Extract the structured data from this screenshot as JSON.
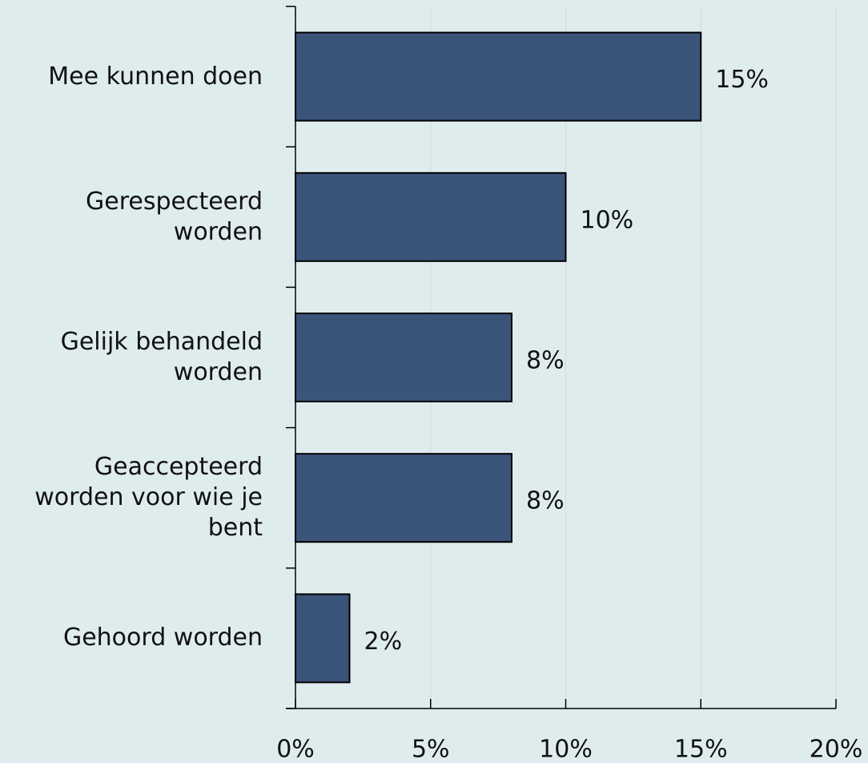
{
  "chart_data": {
    "type": "bar",
    "orientation": "horizontal",
    "categories": [
      "Mee kunnen doen",
      "Gerespecteerd worden",
      "Gelijk behandeld worden",
      "Geaccepteerd worden voor wie je bent",
      "Gehoord worden"
    ],
    "values": [
      15,
      10,
      8,
      8,
      2
    ],
    "value_labels": [
      "15%",
      "10%",
      "8%",
      "8%",
      "2%"
    ],
    "color": "#3b5479",
    "xlim": [
      0,
      20
    ],
    "xticks": [
      {
        "value": 0,
        "label": "0%"
      },
      {
        "value": 5,
        "label": "5%"
      },
      {
        "value": 10,
        "label": "10%"
      },
      {
        "value": 15,
        "label": "15%"
      },
      {
        "value": 20,
        "label": "20%"
      }
    ],
    "grid": true
  }
}
